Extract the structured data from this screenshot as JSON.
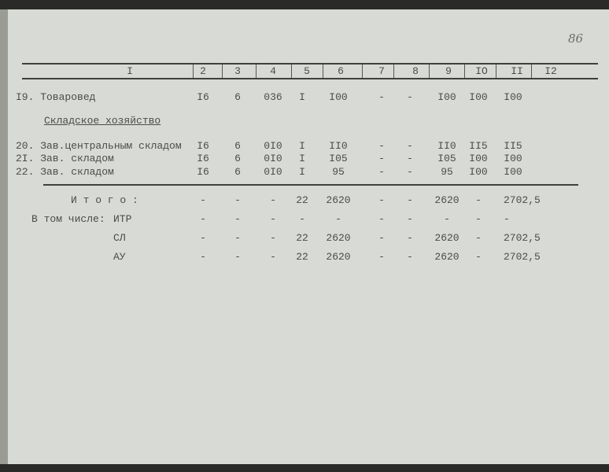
{
  "page_number": "86",
  "header": [
    "I",
    "2",
    "3",
    "4",
    "5",
    "6",
    "7",
    "8",
    "9",
    "IO",
    "II",
    "I2"
  ],
  "section_heading": "Складское хозяйство",
  "rows": [
    {
      "label": "I9. Товаровед",
      "cells": [
        "I6",
        "6",
        "036",
        "I",
        "I00",
        "-",
        "-",
        "I00",
        "I00",
        "I00"
      ]
    },
    {
      "label": "20. Зав.центральным складом",
      "cells": [
        "I6",
        "6",
        "0I0",
        "I",
        "II0",
        "-",
        "-",
        "II0",
        "II5",
        "II5"
      ]
    },
    {
      "label": "2I. Зав. складом",
      "cells": [
        "I6",
        "6",
        "0I0",
        "I",
        "I05",
        "-",
        "-",
        "I05",
        "I00",
        "I00"
      ]
    },
    {
      "label": "22. Зав. складом",
      "cells": [
        "I6",
        "6",
        "0I0",
        "I",
        "95",
        "-",
        "-",
        "95",
        "I00",
        "I00"
      ]
    }
  ],
  "totals": [
    {
      "label": "И т о г о :",
      "cells": [
        "-",
        "-",
        "-",
        "22",
        "2620",
        "-",
        "-",
        "2620",
        "-",
        "2702,5"
      ]
    },
    {
      "prefix": "В том числе:",
      "label": "ИТР",
      "cells": [
        "-",
        "-",
        "-",
        "-",
        "-",
        "-",
        "-",
        "-",
        "-",
        "-"
      ]
    },
    {
      "label": "СЛ",
      "cells": [
        "-",
        "-",
        "-",
        "22",
        "2620",
        "-",
        "-",
        "2620",
        "-",
        "2702,5"
      ]
    },
    {
      "label": "АУ",
      "cells": [
        "-",
        "-",
        "-",
        "22",
        "2620",
        "-",
        "-",
        "2620",
        "-",
        "2702,5"
      ]
    }
  ]
}
